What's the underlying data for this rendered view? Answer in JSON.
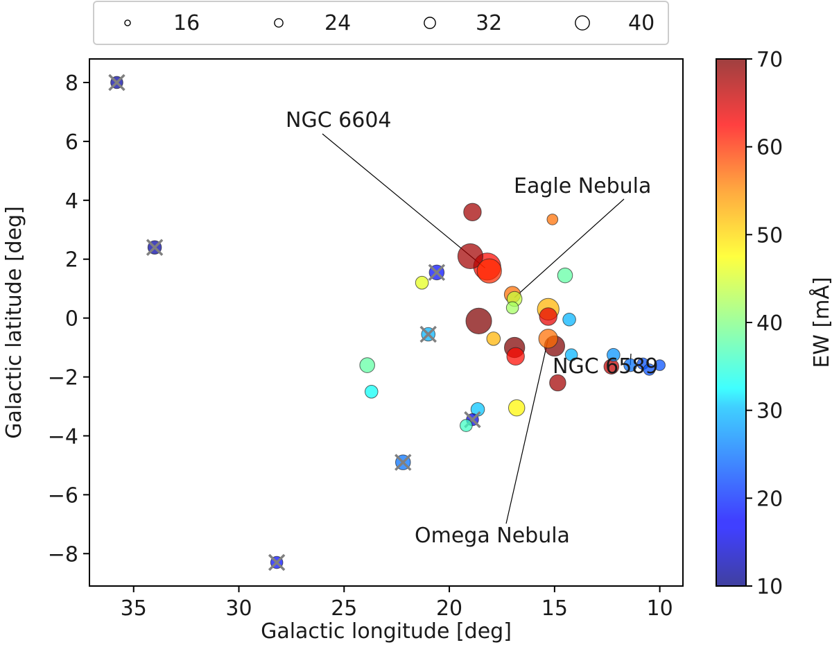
{
  "chart_data": {
    "type": "scatter",
    "xlabel": "Galactic longitude [deg]",
    "ylabel": "Galactic latitude [deg]",
    "xlim": [
      37.1,
      8.9
    ],
    "ylim": [
      -9.1,
      8.8
    ],
    "x_ticks": [
      35,
      30,
      25,
      20,
      15,
      10
    ],
    "y_ticks": [
      8,
      6,
      4,
      2,
      0,
      -2,
      -4,
      -6,
      -8
    ],
    "colorbar": {
      "label": "EW [mÅ]",
      "range": [
        10,
        70
      ],
      "ticks": [
        10,
        20,
        30,
        40,
        50,
        60,
        70
      ]
    },
    "size_legend": {
      "position": "top",
      "entries": [
        16,
        24,
        32,
        40
      ]
    },
    "annotations": [
      {
        "text": "NGC 6604",
        "target": [
          18.3,
          1.7
        ]
      },
      {
        "text": "Eagle Nebula",
        "target": [
          16.9,
          0.7
        ]
      },
      {
        "text": "NGC 6589",
        "target": [
          11.4,
          -1.6
        ]
      },
      {
        "text": "Omega Nebula",
        "target": [
          15.3,
          -0.7
        ]
      }
    ],
    "points": [
      {
        "l": 35.8,
        "b": 8.0,
        "ew": 12,
        "size": 18,
        "flag": true
      },
      {
        "l": 34.0,
        "b": 2.4,
        "ew": 12,
        "size": 20,
        "flag": true
      },
      {
        "l": 28.2,
        "b": -8.3,
        "ew": 18,
        "size": 18,
        "flag": true
      },
      {
        "l": 22.2,
        "b": -4.9,
        "ew": 24,
        "size": 22,
        "flag": true
      },
      {
        "l": 21.0,
        "b": -0.55,
        "ew": 28,
        "size": 20,
        "flag": true
      },
      {
        "l": 20.6,
        "b": 1.55,
        "ew": 18,
        "size": 22,
        "flag": true
      },
      {
        "l": 18.9,
        "b": -3.45,
        "ew": 16,
        "size": 18,
        "flag": true
      },
      {
        "l": 23.9,
        "b": -1.6,
        "ew": 38,
        "size": 22,
        "flag": false
      },
      {
        "l": 23.7,
        "b": -2.5,
        "ew": 33,
        "size": 19,
        "flag": false
      },
      {
        "l": 21.3,
        "b": 1.2,
        "ew": 46,
        "size": 19,
        "flag": false
      },
      {
        "l": 19.2,
        "b": -3.65,
        "ew": 36,
        "size": 18,
        "flag": false
      },
      {
        "l": 18.65,
        "b": -3.1,
        "ew": 29,
        "size": 20,
        "flag": false
      },
      {
        "l": 18.9,
        "b": 3.6,
        "ew": 68,
        "size": 26,
        "flag": false
      },
      {
        "l": 18.6,
        "b": -0.1,
        "ew": 70,
        "size": 38,
        "flag": false
      },
      {
        "l": 19.0,
        "b": 2.1,
        "ew": 68,
        "size": 37,
        "flag": false
      },
      {
        "l": 18.2,
        "b": 1.75,
        "ew": 62,
        "size": 40,
        "flag": false
      },
      {
        "l": 18.1,
        "b": 1.6,
        "ew": 60,
        "size": 36,
        "flag": false
      },
      {
        "l": 17.9,
        "b": -0.7,
        "ew": 52,
        "size": 20,
        "flag": false
      },
      {
        "l": 17.0,
        "b": 0.8,
        "ew": 56,
        "size": 24,
        "flag": false
      },
      {
        "l": 16.9,
        "b": 0.65,
        "ew": 44,
        "size": 22,
        "flag": false
      },
      {
        "l": 17.0,
        "b": 0.35,
        "ew": 42,
        "size": 18,
        "flag": false
      },
      {
        "l": 16.9,
        "b": -1.0,
        "ew": 70,
        "size": 30,
        "flag": false
      },
      {
        "l": 16.85,
        "b": -1.3,
        "ew": 62,
        "size": 26,
        "flag": false
      },
      {
        "l": 16.8,
        "b": -3.05,
        "ew": 48,
        "size": 24,
        "flag": false
      },
      {
        "l": 15.3,
        "b": 0.3,
        "ew": 52,
        "size": 32,
        "flag": false
      },
      {
        "l": 15.3,
        "b": 0.05,
        "ew": 64,
        "size": 26,
        "flag": false
      },
      {
        "l": 15.3,
        "b": -0.7,
        "ew": 56,
        "size": 28,
        "flag": false
      },
      {
        "l": 15.0,
        "b": -0.95,
        "ew": 70,
        "size": 30,
        "flag": false
      },
      {
        "l": 15.1,
        "b": 3.35,
        "ew": 56,
        "size": 16,
        "flag": false
      },
      {
        "l": 14.5,
        "b": 1.45,
        "ew": 38,
        "size": 22,
        "flag": false
      },
      {
        "l": 14.3,
        "b": -0.05,
        "ew": 28,
        "size": 19,
        "flag": false
      },
      {
        "l": 14.2,
        "b": -1.25,
        "ew": 28,
        "size": 18,
        "flag": false
      },
      {
        "l": 14.85,
        "b": -2.2,
        "ew": 68,
        "size": 24,
        "flag": false
      },
      {
        "l": 12.2,
        "b": -1.25,
        "ew": 26,
        "size": 19,
        "flag": false
      },
      {
        "l": 12.3,
        "b": -1.65,
        "ew": 66,
        "size": 22,
        "flag": false
      },
      {
        "l": 11.4,
        "b": -1.6,
        "ew": 24,
        "size": 19,
        "flag": false
      },
      {
        "l": 10.8,
        "b": -1.55,
        "ew": 22,
        "size": 17,
        "flag": false
      },
      {
        "l": 10.5,
        "b": -1.75,
        "ew": 22,
        "size": 17,
        "flag": false
      },
      {
        "l": 10.0,
        "b": -1.6,
        "ew": 22,
        "size": 16,
        "flag": false
      }
    ]
  }
}
